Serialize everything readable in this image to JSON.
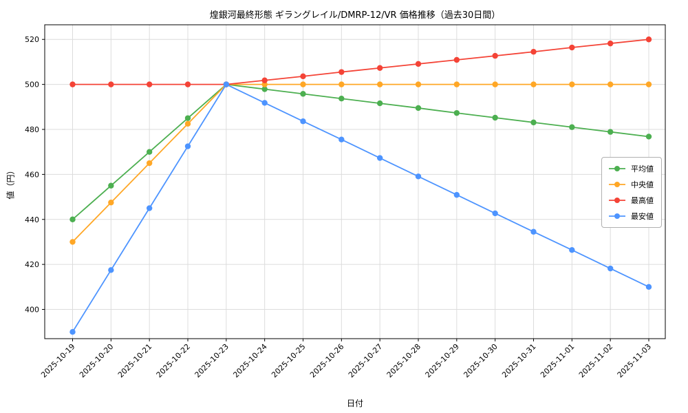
{
  "chart_data": {
    "type": "line",
    "title": "煌銀河最終形態 ギラングレイル/DMRP-12/VR 価格推移（過去30日間）",
    "xlabel": "日付",
    "ylabel": "値（円）",
    "categories": [
      "2025-10-19",
      "2025-10-20",
      "2025-10-21",
      "2025-10-22",
      "2025-10-23",
      "2025-10-24",
      "2025-10-25",
      "2025-10-26",
      "2025-10-27",
      "2025-10-28",
      "2025-10-29",
      "2025-10-30",
      "2025-10-31",
      "2025-11-01",
      "2025-11-02",
      "2025-11-03"
    ],
    "series": [
      {
        "key": "average",
        "name": "平均値",
        "color": "#4caf50",
        "values": [
          440,
          455,
          470,
          485,
          500,
          497.9,
          495.8,
          493.7,
          491.6,
          489.5,
          487.3,
          485.2,
          483.1,
          481.0,
          478.9,
          476.8
        ]
      },
      {
        "key": "median",
        "name": "中央値",
        "color": "#ffa726",
        "values": [
          430,
          447.5,
          465,
          482.5,
          500,
          500,
          500,
          500,
          500,
          500,
          500,
          500,
          500,
          500,
          500,
          500
        ]
      },
      {
        "key": "max",
        "name": "最高値",
        "color": "#f44336",
        "values": [
          500,
          500,
          500,
          500,
          500,
          501.8,
          503.6,
          505.5,
          507.3,
          509.1,
          510.9,
          512.7,
          514.5,
          516.4,
          518.2,
          520
        ]
      },
      {
        "key": "min",
        "name": "最安値",
        "color": "#4d94ff",
        "values": [
          390,
          417.5,
          445,
          472.5,
          500,
          491.8,
          483.6,
          475.5,
          467.3,
          459.1,
          450.9,
          442.7,
          434.5,
          426.4,
          418.2,
          410
        ]
      }
    ],
    "yticks": [
      400,
      420,
      440,
      460,
      480,
      500,
      520
    ],
    "ylim": [
      387,
      526.5
    ],
    "grid": true,
    "grid_color": "#dcdcdc",
    "axis_color": "#000000",
    "legend_position": "center right"
  }
}
